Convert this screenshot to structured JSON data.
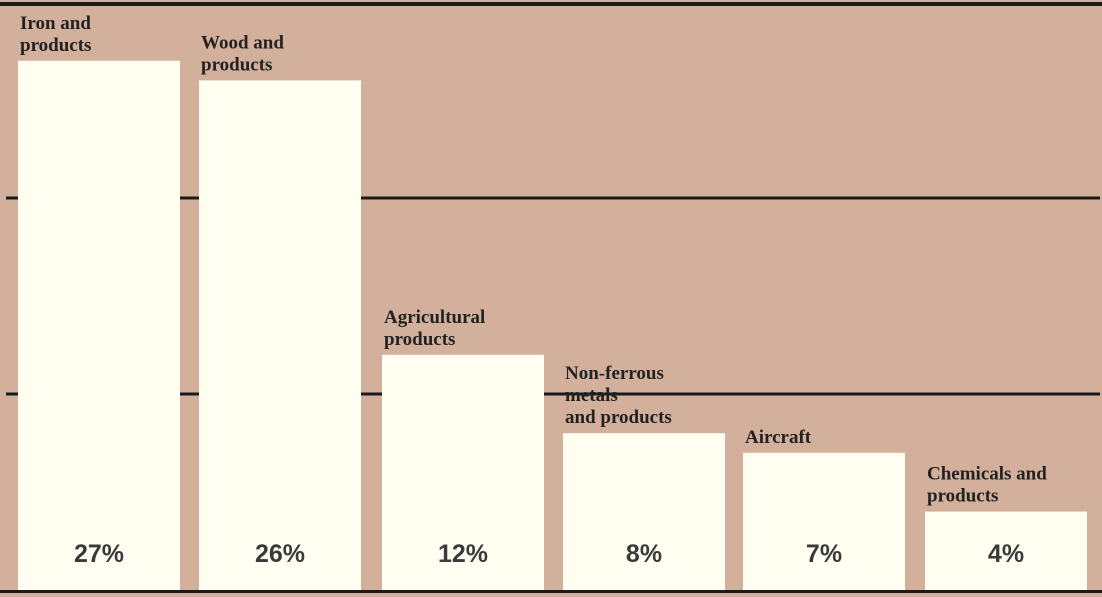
{
  "chart_data": {
    "type": "bar",
    "categories": [
      "Iron and products",
      "Wood and products",
      "Agricultural products",
      "Non-ferrous metals and products",
      "Aircraft",
      "Chemicals and products"
    ],
    "category_label_lines": [
      [
        "Iron and",
        "products"
      ],
      [
        "Wood and",
        "products"
      ],
      [
        "Agricultural",
        "products"
      ],
      [
        "Non-ferrous",
        "metals",
        "and products"
      ],
      [
        "Aircraft"
      ],
      [
        "Chemicals and",
        "products"
      ]
    ],
    "values": [
      27,
      26,
      12,
      8,
      7,
      4
    ],
    "value_labels": [
      "27%",
      "26%",
      "12%",
      "8%",
      "7%",
      "4%"
    ],
    "title": "",
    "xlabel": "",
    "ylabel": "",
    "ylim": [
      0,
      30
    ],
    "gridlines": [
      10,
      20
    ],
    "legend": "none",
    "colors": {
      "background": "#d2b09c",
      "bar": "#fffef0",
      "rule": "#1a1a1a",
      "label": "#222222",
      "value_text": "#3a3a3a"
    }
  }
}
